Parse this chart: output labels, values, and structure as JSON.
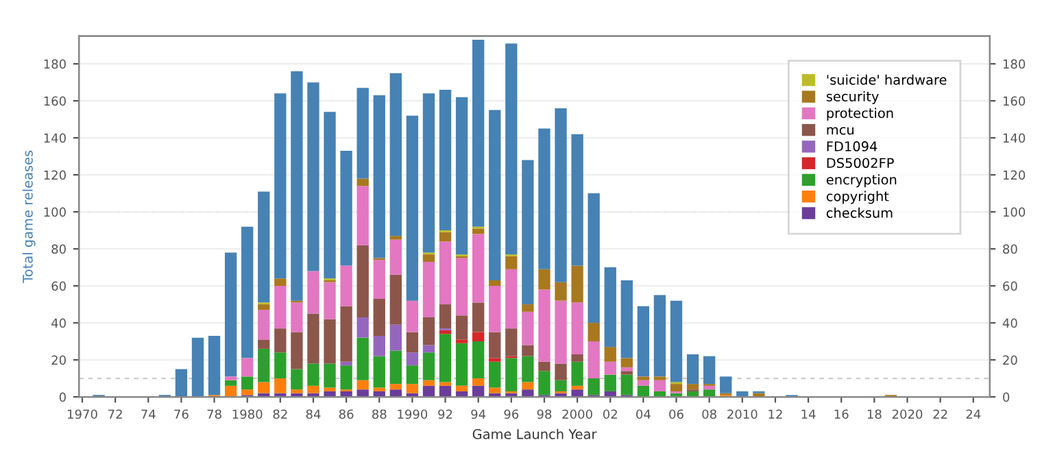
{
  "chart_data": {
    "type": "bar",
    "stacked": true,
    "xlabel": "Game Launch Year",
    "ylabel": "Total game releases",
    "x": [
      1971,
      1972,
      1973,
      1974,
      1975,
      1976,
      1977,
      1978,
      1979,
      1980,
      1981,
      1982,
      1983,
      1984,
      1985,
      1986,
      1987,
      1988,
      1989,
      1990,
      1991,
      1992,
      1993,
      1994,
      1995,
      1996,
      1997,
      1998,
      1999,
      2000,
      2001,
      2002,
      2003,
      2004,
      2005,
      2006,
      2007,
      2008,
      2009,
      2010,
      2011,
      2012,
      2013,
      2014,
      2015,
      2016,
      2017,
      2018,
      2019
    ],
    "series": [
      {
        "name": "checksum",
        "color": "#6a3d9a",
        "values": [
          0,
          0,
          0,
          0,
          0,
          0,
          0,
          0,
          0,
          1,
          2,
          2,
          2,
          2,
          3,
          3,
          4,
          3,
          4,
          2,
          6,
          6,
          3,
          6,
          2,
          2,
          4,
          1,
          2,
          4,
          1,
          3,
          1,
          0,
          0,
          0,
          0,
          0,
          0,
          0,
          0,
          0,
          0,
          0,
          0,
          0,
          0,
          0,
          0
        ]
      },
      {
        "name": "copyright",
        "color": "#ff7f0e",
        "values": [
          0,
          0,
          0,
          0,
          0,
          0,
          0,
          1,
          6,
          3,
          6,
          8,
          2,
          4,
          2,
          1,
          5,
          2,
          3,
          5,
          3,
          2,
          3,
          4,
          3,
          1,
          4,
          0,
          1,
          2,
          0,
          0,
          0,
          0,
          0,
          0,
          0,
          0,
          1,
          0,
          0,
          0,
          0,
          0,
          0,
          0,
          0,
          0,
          0
        ]
      },
      {
        "name": "encryption",
        "color": "#2ca02c",
        "values": [
          0,
          0,
          0,
          0,
          0,
          0,
          0,
          0,
          3,
          7,
          18,
          14,
          11,
          12,
          13,
          13,
          23,
          17,
          18,
          10,
          15,
          26,
          23,
          20,
          14,
          18,
          14,
          13,
          6,
          13,
          9,
          9,
          11,
          6,
          3,
          2,
          3,
          4,
          0,
          0,
          0,
          0,
          0,
          0,
          0,
          0,
          0,
          0,
          0
        ]
      },
      {
        "name": "DS5002FP",
        "color": "#d62728",
        "values": [
          0,
          0,
          0,
          0,
          0,
          0,
          0,
          0,
          0,
          0,
          0,
          0,
          0,
          0,
          0,
          0,
          0,
          0,
          0,
          0,
          0,
          2,
          2,
          5,
          2,
          1,
          0,
          0,
          0,
          0,
          0,
          0,
          0,
          0,
          0,
          0,
          0,
          0,
          0,
          0,
          0,
          0,
          0,
          0,
          0,
          0,
          0,
          0,
          0
        ]
      },
      {
        "name": "FD1094",
        "color": "#9467bd",
        "values": [
          0,
          0,
          0,
          0,
          0,
          0,
          0,
          0,
          0,
          0,
          0,
          0,
          0,
          0,
          0,
          2,
          11,
          11,
          14,
          7,
          4,
          1,
          0,
          0,
          0,
          0,
          0,
          0,
          0,
          0,
          0,
          0,
          0,
          0,
          0,
          0,
          0,
          0,
          0,
          0,
          0,
          0,
          0,
          0,
          0,
          0,
          0,
          0,
          0
        ]
      },
      {
        "name": "mcu",
        "color": "#8c564b",
        "values": [
          0,
          0,
          0,
          0,
          0,
          0,
          0,
          0,
          0,
          0,
          5,
          13,
          20,
          27,
          24,
          30,
          39,
          20,
          27,
          11,
          15,
          13,
          13,
          16,
          14,
          15,
          6,
          5,
          9,
          4,
          0,
          0,
          2,
          0,
          0,
          0,
          1,
          0,
          0,
          0,
          0,
          0,
          0,
          0,
          0,
          0,
          0,
          0,
          0
        ]
      },
      {
        "name": "protection",
        "color": "#e377c2",
        "values": [
          0,
          0,
          0,
          0,
          0,
          0,
          0,
          0,
          2,
          10,
          16,
          23,
          16,
          23,
          20,
          22,
          32,
          21,
          19,
          17,
          30,
          34,
          31,
          37,
          25,
          32,
          18,
          39,
          34,
          28,
          20,
          7,
          2,
          3,
          6,
          1,
          0,
          2,
          0,
          0,
          0,
          0,
          0,
          0,
          0,
          0,
          0,
          0,
          0
        ]
      },
      {
        "name": "security",
        "color": "#a8781e",
        "values": [
          0,
          0,
          0,
          0,
          0,
          0,
          0,
          0,
          0,
          0,
          3,
          4,
          1,
          0,
          1,
          0,
          4,
          1,
          2,
          0,
          4,
          5,
          1,
          3,
          3,
          7,
          4,
          11,
          10,
          20,
          10,
          8,
          5,
          2,
          2,
          4,
          3,
          1,
          1,
          0,
          2,
          0,
          0,
          0,
          0,
          0,
          0,
          0,
          1
        ]
      },
      {
        "name": "'suicide' hardware",
        "color": "#bcbd22",
        "values": [
          0,
          0,
          0,
          0,
          0,
          0,
          0,
          0,
          0,
          0,
          1,
          0,
          0,
          0,
          1,
          0,
          0,
          0,
          0,
          0,
          1,
          1,
          1,
          1,
          0,
          1,
          0,
          0,
          0,
          0,
          0,
          0,
          0,
          0,
          0,
          1,
          0,
          0,
          0,
          0,
          0,
          0,
          0,
          0,
          0,
          0,
          0,
          0,
          0
        ]
      },
      {
        "color": "#4682b4",
        "values": [
          1,
          0,
          0,
          0,
          1,
          15,
          32,
          32,
          67,
          71,
          60,
          100,
          124,
          102,
          90,
          62,
          49,
          88,
          88,
          100,
          86,
          76,
          85,
          101,
          92,
          114,
          78,
          76,
          94,
          71,
          70,
          43,
          42,
          38,
          44,
          44,
          16,
          15,
          9,
          3,
          1,
          0,
          1,
          0,
          0,
          0,
          0,
          0,
          0
        ]
      }
    ],
    "xlim": [
      1969.8,
      2025
    ],
    "xticks": [
      1970,
      {
        "value": 1972,
        "label": "72"
      },
      {
        "value": 1974,
        "label": "74"
      },
      {
        "value": 1976,
        "label": "76"
      },
      {
        "value": 1978,
        "label": "78"
      },
      1980,
      {
        "value": 1982,
        "label": "82"
      },
      {
        "value": 1984,
        "label": "84"
      },
      {
        "value": 1986,
        "label": "86"
      },
      {
        "value": 1988,
        "label": "88"
      },
      1990,
      {
        "value": 1992,
        "label": "92"
      },
      {
        "value": 1994,
        "label": "94"
      },
      {
        "value": 1996,
        "label": "96"
      },
      {
        "value": 1998,
        "label": "98"
      },
      2000,
      {
        "value": 2002,
        "label": "02"
      },
      {
        "value": 2004,
        "label": "04"
      },
      {
        "value": 2006,
        "label": "06"
      },
      {
        "value": 2008,
        "label": "08"
      },
      2010,
      {
        "value": 2012,
        "label": "12"
      },
      {
        "value": 2014,
        "label": "14"
      },
      {
        "value": 2016,
        "label": "16"
      },
      {
        "value": 2018,
        "label": "18"
      },
      2020,
      {
        "value": 2022,
        "label": "22"
      },
      {
        "value": 2024,
        "label": "24"
      }
    ],
    "ylim": [
      0,
      195
    ],
    "yticks": [
      0,
      20,
      40,
      60,
      80,
      100,
      120,
      140,
      160,
      180
    ],
    "y2lim": [
      0,
      195
    ],
    "y2ticks": [
      0,
      20,
      40,
      60,
      80,
      100,
      120,
      140,
      160,
      180
    ],
    "ref_lines": [
      {
        "axis": "y",
        "value": 10,
        "color": "#cccccc",
        "line_style": "dashed"
      },
      {
        "axis": "y",
        "value": 100,
        "color": "#cccccc",
        "line_style": "dashed"
      }
    ],
    "grid": "y",
    "legend": "top right"
  }
}
